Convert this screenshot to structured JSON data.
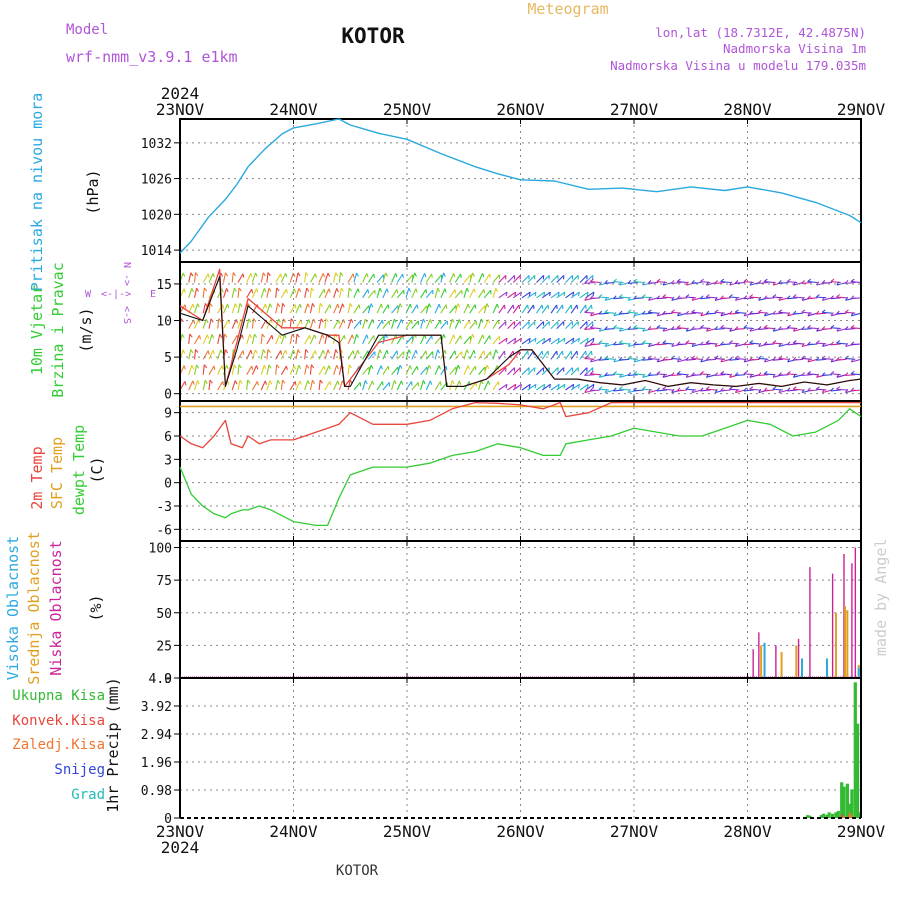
{
  "header": {
    "title": "KOTOR",
    "meteogram_label": "Meteogram",
    "model_label": "Model",
    "model_name": "wrf-nmm_v3.9.1 e1km",
    "coords": "lon,lat (18.7312E, 42.4875N)",
    "elevation": "Nadmorska Visina 1m",
    "model_elevation": "Nadmorska Visina u modelu 179.035m",
    "year_top": "2024",
    "year_bottom": "2024",
    "footer_station": "KOTOR",
    "credit": "made by Angel"
  },
  "colors": {
    "pressure": "#2aa9e0",
    "temp2m": "#e8453c",
    "sfc": "#e0a020",
    "dew": "#33cc33",
    "low_cloud": "#cc2299",
    "mid_cloud": "#e0a020",
    "high_cloud": "#2aa9e0",
    "total_precip": "#33bb33",
    "conv_precip": "#e8453c",
    "freezing_precip": "#ee7733",
    "snow": "#3344dd",
    "hail": "#22bbbb",
    "label_purple": "#b055d8",
    "label_orange": "#e8b860"
  },
  "chart_data": [
    {
      "type": "line",
      "panel": "pressure",
      "ylabel": [
        "Pritisak na nivou mora",
        "(hPa)"
      ],
      "ylim": [
        1012,
        1036
      ],
      "yticks": [
        1014,
        1020,
        1026,
        1032
      ],
      "x_labels": [
        "23NOV",
        "24NOV",
        "25NOV",
        "26NOV",
        "27NOV",
        "28NOV",
        "29NOV"
      ],
      "x": [
        0,
        0.1,
        0.25,
        0.4,
        0.5,
        0.6,
        0.75,
        0.9,
        1.0,
        1.2,
        1.4,
        1.5,
        1.75,
        2.0,
        2.3,
        2.6,
        2.8,
        3.0,
        3.3,
        3.6,
        3.9,
        4.2,
        4.5,
        4.8,
        5.0,
        5.3,
        5.6,
        5.9,
        6.0
      ],
      "series": [
        {
          "values": [
            1013.5,
            1015.5,
            1019.5,
            1022.5,
            1025.0,
            1028.0,
            1031.0,
            1033.5,
            1034.5,
            1035.2,
            1036.0,
            1035.0,
            1033.6,
            1032.6,
            1030.2,
            1028.0,
            1026.8,
            1025.8,
            1025.6,
            1024.2,
            1024.4,
            1023.8,
            1024.6,
            1024.0,
            1024.6,
            1023.6,
            1022.0,
            1019.8,
            1018.6
          ]
        }
      ]
    },
    {
      "type": "line",
      "panel": "wind",
      "ylabel": [
        "10m Vjetar",
        "Brzina i Pravac",
        "(m/s)"
      ],
      "compass": [
        "N",
        "W",
        "E",
        "S"
      ],
      "ylim": [
        -1,
        18
      ],
      "yticks": [
        0,
        5,
        10,
        15
      ],
      "x": [
        0,
        0.2,
        0.35,
        0.4,
        0.5,
        0.6,
        0.75,
        0.9,
        1.1,
        1.3,
        1.4,
        1.45,
        1.5,
        1.75,
        2.0,
        2.3,
        2.35,
        2.5,
        2.7,
        2.9,
        3.0,
        3.1,
        3.3,
        3.5,
        3.7,
        3.9,
        4.1,
        4.3,
        4.5,
        4.7,
        4.9,
        5.1,
        5.3,
        5.5,
        5.7,
        5.9,
        6.0
      ],
      "series": [
        {
          "name": "speed",
          "values": [
            11,
            10,
            16,
            1,
            6,
            12,
            10,
            8,
            9,
            8,
            7,
            1,
            1,
            8,
            8,
            8,
            1,
            1,
            2,
            5,
            6,
            6,
            2,
            2,
            1.5,
            1.2,
            1.8,
            1.0,
            1.5,
            1.2,
            1.0,
            1.4,
            1.0,
            1.6,
            1.2,
            1.8,
            2.0
          ]
        },
        {
          "name": "gust",
          "values": [
            12,
            10,
            17,
            1,
            7,
            13,
            11,
            9,
            9,
            8,
            8,
            1,
            2,
            7,
            8,
            8,
            1,
            1,
            2,
            4,
            6,
            6,
            2,
            2,
            1.5,
            1.2,
            1.8,
            1.0,
            1.5,
            1.2,
            1.0,
            1.4,
            1.0,
            1.6,
            1.2,
            1.8,
            2.0
          ]
        }
      ]
    },
    {
      "type": "line",
      "panel": "temperature",
      "ylabel": [
        "2m Temp",
        "SFC Temp",
        "dewpt Temp",
        "(C)"
      ],
      "ylim": [
        -7.5,
        10.5
      ],
      "yticks": [
        -6,
        -3,
        0,
        3,
        6,
        9
      ],
      "x": [
        0,
        0.1,
        0.2,
        0.3,
        0.4,
        0.45,
        0.55,
        0.6,
        0.7,
        0.8,
        1.0,
        1.2,
        1.3,
        1.4,
        1.5,
        1.7,
        1.9,
        2.0,
        2.2,
        2.4,
        2.6,
        2.8,
        3.0,
        3.2,
        3.35,
        3.4,
        3.6,
        3.8,
        4.0,
        4.2,
        4.4,
        4.6,
        4.8,
        5.0,
        5.2,
        5.4,
        5.6,
        5.8,
        5.9,
        6.0
      ],
      "series": [
        {
          "name": "2m Temp",
          "values": [
            6,
            5,
            4.5,
            6,
            8,
            5,
            4.5,
            6,
            5,
            5.5,
            5.5,
            6.5,
            7,
            7.5,
            9,
            7.5,
            7.5,
            7.5,
            8,
            9.5,
            10.5,
            10.2,
            10,
            9.5,
            10.5,
            8.5,
            9,
            10.5,
            10.8,
            11,
            10.5,
            11,
            10.8,
            11,
            10.9,
            11,
            10.9,
            11,
            10.9,
            11
          ]
        },
        {
          "name": "SFC Temp",
          "values": [
            9.8,
            9.8,
            9.8,
            9.8,
            9.8,
            9.8,
            9.8,
            9.8,
            9.8,
            9.8,
            9.8,
            9.8,
            9.8,
            9.8,
            9.8,
            9.8,
            9.8,
            9.8,
            9.8,
            9.8,
            9.8,
            9.8,
            9.8,
            9.8,
            9.8,
            9.8,
            9.8,
            9.8,
            9.8,
            9.8,
            9.8,
            9.8,
            9.8,
            9.8,
            9.8,
            9.8,
            9.8,
            9.8,
            9.8,
            9.8
          ]
        },
        {
          "name": "dewpt Temp",
          "values": [
            2,
            -1.5,
            -3,
            -4,
            -4.5,
            -4,
            -3.5,
            -3.5,
            -3,
            -3.5,
            -5,
            -5.5,
            -5.5,
            -2,
            1,
            2,
            2,
            2,
            2.5,
            3.5,
            4,
            5,
            4.5,
            3.5,
            3.5,
            5,
            5.5,
            6,
            7,
            6.5,
            6,
            6,
            7,
            8,
            7.5,
            6,
            6.5,
            8,
            9.5,
            8.5
          ]
        }
      ]
    },
    {
      "type": "bar",
      "panel": "clouds",
      "ylabel": [
        "Visoka Oblacnost",
        "Srednja Oblacnost",
        "Niska Oblacnost",
        "(%)"
      ],
      "ylim": [
        0,
        105
      ],
      "yticks": [
        0,
        25,
        50,
        75,
        100
      ],
      "series": [
        {
          "name": "Niska Oblacnost",
          "x": [
            5.05,
            5.1,
            5.25,
            5.45,
            5.55,
            5.75,
            5.85,
            5.92,
            5.95
          ],
          "values": [
            22,
            35,
            25,
            30,
            85,
            80,
            95,
            88,
            100
          ]
        },
        {
          "name": "Srednja Oblacnost",
          "x": [
            5.12,
            5.3,
            5.43,
            5.78,
            5.86,
            5.88,
            5.98
          ],
          "values": [
            25,
            20,
            25,
            50,
            55,
            52,
            10
          ]
        },
        {
          "name": "Visoka Oblacnost",
          "x": [
            5.15,
            5.48,
            5.7,
            5.98
          ],
          "values": [
            27,
            15,
            15,
            8
          ]
        }
      ]
    },
    {
      "type": "bar",
      "panel": "precipitation",
      "ylabel": [
        "1hr Precip (mm)"
      ],
      "legend": [
        "Ukupna Kisa",
        "Konvek.Kisa",
        "Zaledj.Kisa",
        "Snijeg",
        "Grad"
      ],
      "ylim": [
        0,
        4.9
      ],
      "yticks": [
        0,
        0.98,
        1.96,
        2.94,
        3.92,
        4.9
      ],
      "x": [
        5.53,
        5.55,
        5.65,
        5.67,
        5.7,
        5.72,
        5.75,
        5.78,
        5.8,
        5.83,
        5.85,
        5.88,
        5.9,
        5.92,
        5.95,
        5.97,
        5.99
      ],
      "series": [
        {
          "name": "Ukupna Kisa",
          "values": [
            0.1,
            0.08,
            0.1,
            0.15,
            0.12,
            0.2,
            0.15,
            0.2,
            0.25,
            1.25,
            1.1,
            1.2,
            0.5,
            1.0,
            4.75,
            3.3,
            0.2
          ]
        },
        {
          "name": "Konvek.Kisa",
          "values": [
            0,
            0,
            0,
            0,
            0,
            0,
            0,
            0,
            0,
            0.12,
            0,
            0,
            0,
            0,
            0,
            0,
            0
          ]
        },
        {
          "name": "Zaledj.Kisa",
          "values": [
            0,
            0,
            0,
            0,
            0,
            0,
            0,
            0,
            0,
            0.05,
            0.05,
            0.05,
            0.2,
            0.1,
            0,
            0,
            0
          ]
        }
      ]
    }
  ]
}
